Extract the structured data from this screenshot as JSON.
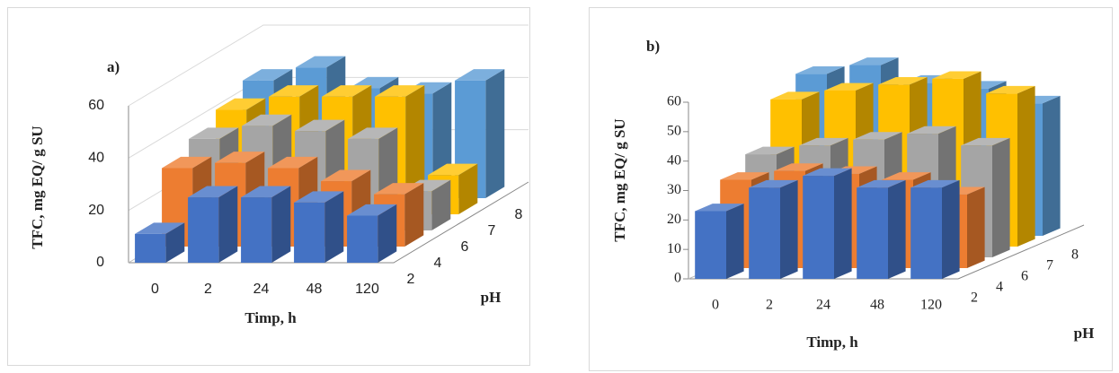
{
  "chart_data": [
    {
      "type": "bar3d",
      "label": "a)",
      "y_label": "TFC, mg EQ/ g SU",
      "x_label": "Timp, h",
      "z_label": "pH",
      "categories": [
        "0",
        "2",
        "24",
        "48",
        "120"
      ],
      "series": [
        {
          "name": "2",
          "color": "#4472c4",
          "values": [
            11,
            25,
            25,
            23,
            18
          ]
        },
        {
          "name": "4",
          "color": "#ed7d31",
          "values": [
            30,
            32,
            30,
            25,
            20
          ]
        },
        {
          "name": "6",
          "color": "#a5a5a5",
          "values": [
            35,
            40,
            38,
            35,
            15
          ]
        },
        {
          "name": "7",
          "color": "#ffc000",
          "values": [
            40,
            45,
            45,
            45,
            15
          ]
        },
        {
          "name": "8",
          "color": "#5b9bd5",
          "values": [
            45,
            50,
            42,
            40,
            45
          ]
        }
      ],
      "ylim": [
        0,
        60
      ],
      "yticks": [
        0,
        20,
        40,
        60
      ],
      "grid": true
    },
    {
      "type": "bar3d",
      "label": "b)",
      "y_label": "TFC, mg EQ/ g SU",
      "x_label": "Timp, h",
      "z_label": "pH",
      "categories": [
        "0",
        "2",
        "24",
        "48",
        "120"
      ],
      "series": [
        {
          "name": "2",
          "color": "#4472c4",
          "values": [
            23,
            31,
            35,
            31,
            31
          ]
        },
        {
          "name": "4",
          "color": "#ed7d31",
          "values": [
            30,
            33,
            32,
            30,
            25
          ]
        },
        {
          "name": "6",
          "color": "#a5a5a5",
          "values": [
            35,
            38,
            40,
            42,
            38
          ]
        },
        {
          "name": "7",
          "color": "#ffc000",
          "values": [
            50,
            53,
            55,
            57,
            52
          ]
        },
        {
          "name": "8",
          "color": "#5b9bd5",
          "values": [
            55,
            58,
            52,
            50,
            45
          ]
        }
      ],
      "ylim": [
        0,
        60
      ],
      "yticks": [
        0,
        10,
        20,
        30,
        40,
        50,
        60
      ],
      "grid": false
    }
  ]
}
